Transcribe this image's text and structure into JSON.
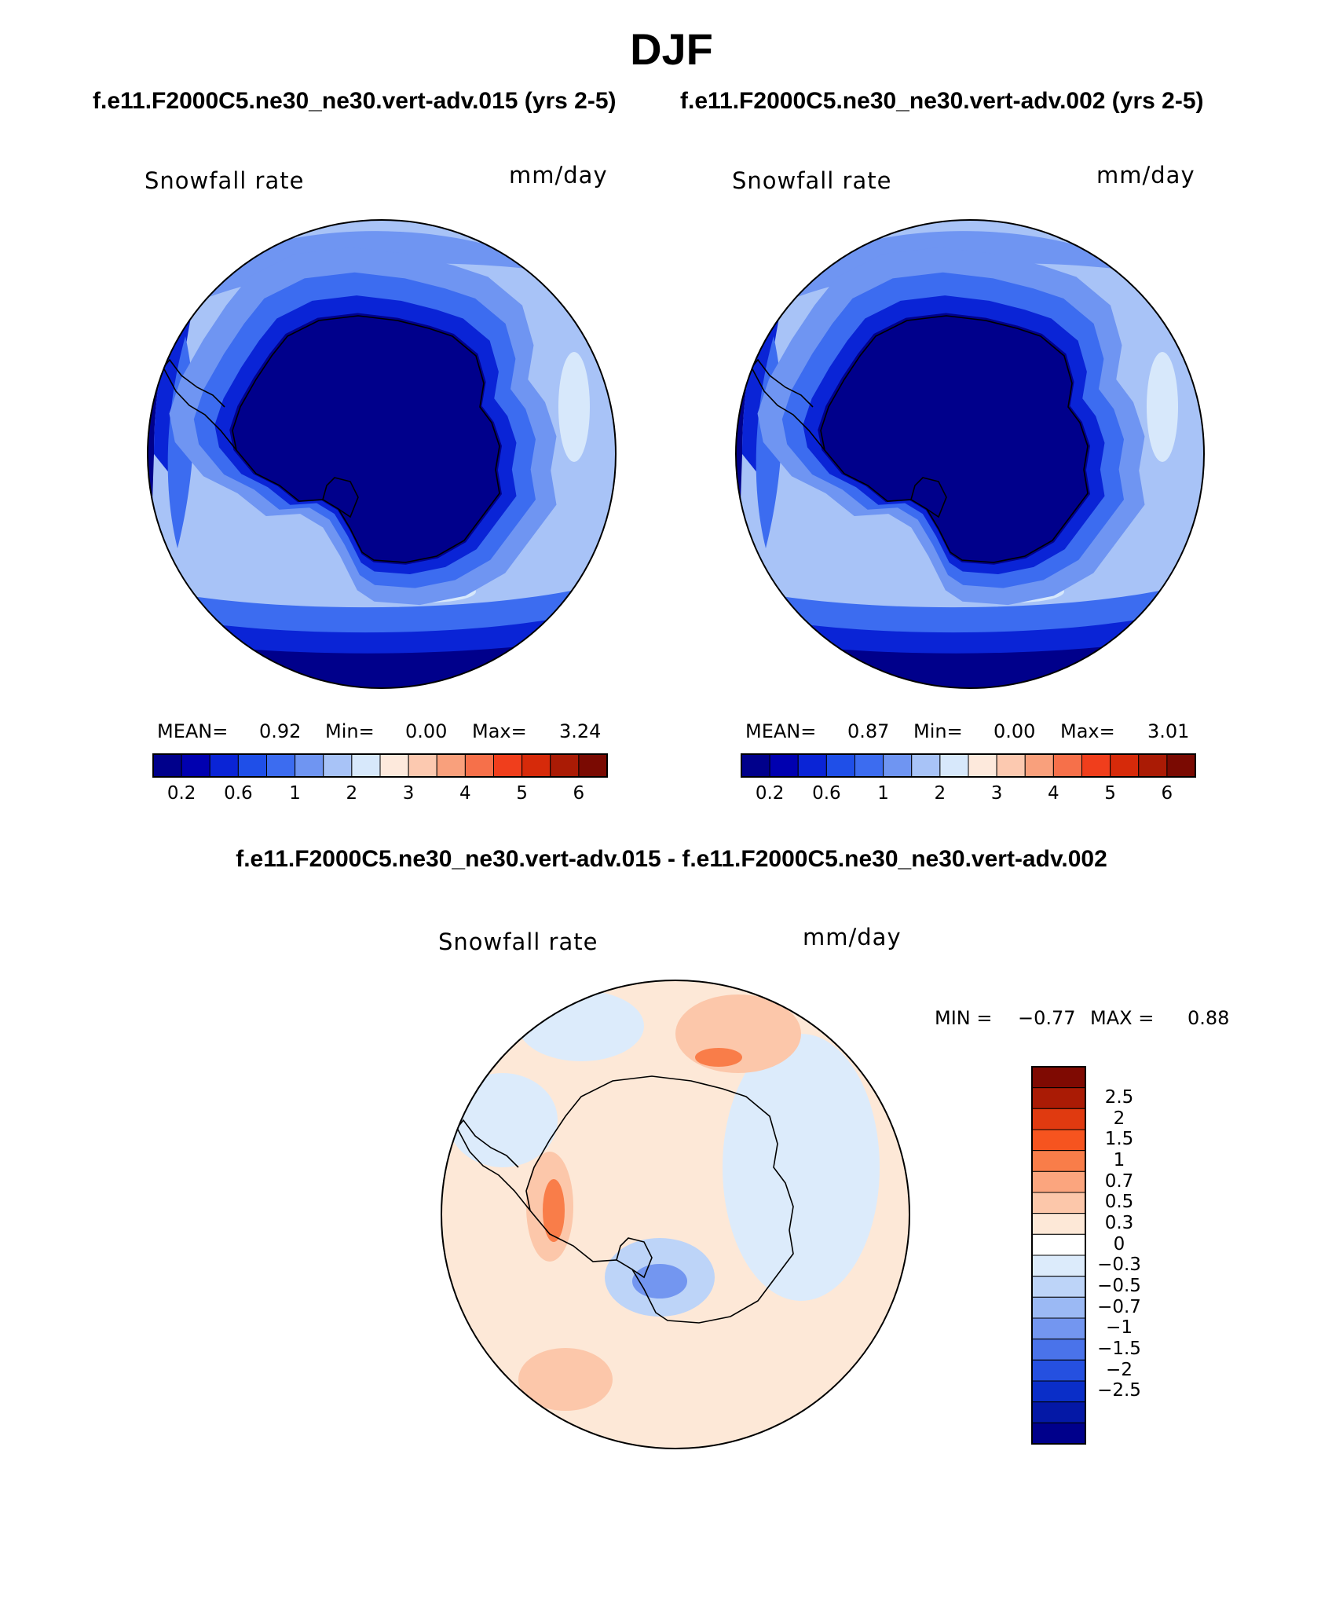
{
  "title": "DJF",
  "subtitles": {
    "left": "f.e11.F2000C5.ne30_ne30.vert-adv.015 (yrs 2-5)",
    "right": "f.e11.F2000C5.ne30_ne30.vert-adv.002 (yrs 2-5)",
    "difference": "f.e11.F2000C5.ne30_ne30.vert-adv.015 - f.e11.F2000C5.ne30_ne30.vert-adv.002"
  },
  "panels": [
    {
      "variable": "Snowfall rate",
      "units": "mm/day",
      "stats": {
        "mean_label": "MEAN=",
        "mean": "0.92",
        "min_label": "Min=",
        "min": "0.00",
        "max_label": "Max=",
        "max": "3.24"
      }
    },
    {
      "variable": "Snowfall rate",
      "units": "mm/day",
      "stats": {
        "mean_label": "MEAN=",
        "mean": "0.87",
        "min_label": "Min=",
        "min": "0.00",
        "max_label": "Max=",
        "max": "3.01"
      }
    }
  ],
  "difference_panel": {
    "variable": "Snowfall rate",
    "units": "mm/day",
    "stats": {
      "min_label": "MIN =",
      "min": "−0.77",
      "max_label": "MAX =",
      "max": "0.88"
    }
  },
  "colorbar_main": {
    "colors": [
      "#00008b",
      "#0000b0",
      "#0a24d6",
      "#1f4fe8",
      "#3c6cf0",
      "#6f95f2",
      "#a8c3f7",
      "#d7e8fb",
      "#fde9dc",
      "#fcc9b0",
      "#f9a07c",
      "#f6704a",
      "#f03e1c",
      "#d62a0a",
      "#aa1b05",
      "#7a0a02"
    ],
    "ticks": [
      "0.2",
      "0.6",
      "1",
      "2",
      "3",
      "4",
      "5",
      "6"
    ]
  },
  "colorbar_diff": {
    "colors": [
      "#7f0a02",
      "#aa1b05",
      "#e03a10",
      "#f6541f",
      "#f97d49",
      "#fba57e",
      "#fcc7aa",
      "#fde8d7",
      "#ffffff",
      "#dcebfb",
      "#bdd4f8",
      "#9bb9f4",
      "#7396f0",
      "#4a73ea",
      "#2550e0",
      "#0a2ec8",
      "#0418a6",
      "#00008b"
    ],
    "ticks": [
      "2.5",
      "2",
      "1.5",
      "1",
      "0.7",
      "0.5",
      "0.3",
      "0",
      "−0.3",
      "−0.5",
      "−0.7",
      "−1",
      "−1.5",
      "−2",
      "−2.5"
    ]
  },
  "map_colors": {
    "ocean_far": "#00008b",
    "band2": "#0a24d6",
    "band3": "#3c6cf0",
    "band4": "#6f95f2",
    "band5": "#a8c3f7",
    "light": "#d7e8fb",
    "coast": "#000000",
    "diff_pos": "#fde8d7",
    "diff_pos2": "#fcc7aa",
    "diff_pos3": "#f97d49",
    "diff_neg": "#dcebfb",
    "diff_neg2": "#bdd4f8",
    "diff_neg3": "#7396f0"
  }
}
